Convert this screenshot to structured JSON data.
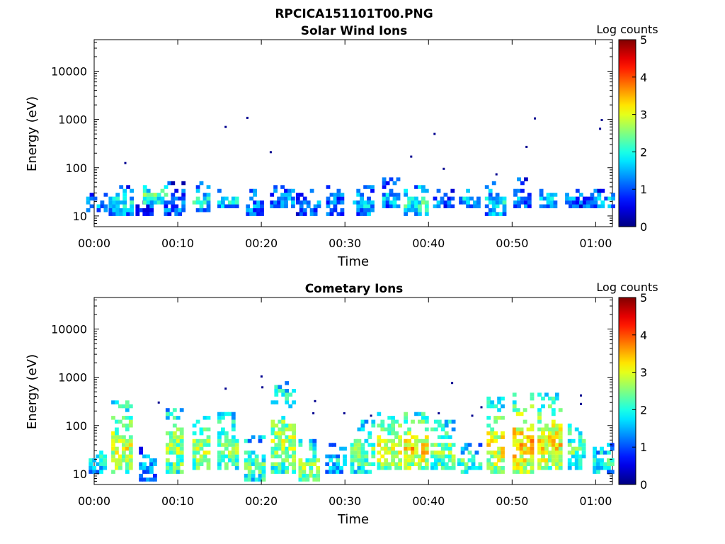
{
  "figure_title": "RPCICA151101T00.PNG",
  "chart_data": [
    {
      "type": "heatmap",
      "title": "Solar Wind Ions",
      "xlabel": "Time",
      "ylabel": "Energy (eV)",
      "y_scale": "log",
      "ylim": [
        6,
        45000
      ],
      "x_range_minutes": [
        0,
        62
      ],
      "x_ticks": [
        "00:00",
        "00:10",
        "00:20",
        "00:30",
        "00:40",
        "00:50",
        "01:00"
      ],
      "y_ticks": [
        "10",
        "100",
        "1000",
        "10000"
      ],
      "colorbar": {
        "label": "Log counts",
        "range": [
          0,
          5
        ],
        "ticks": [
          "0",
          "1",
          "2",
          "3",
          "4",
          "5"
        ],
        "colormap": "jet"
      },
      "bursts": [
        {
          "t": 0.3,
          "e": [
            13,
            30
          ],
          "c": 1.4
        },
        {
          "t": 3.2,
          "e": [
            12,
            40
          ],
          "c": 1.8
        },
        {
          "t": 6.0,
          "e": [
            12,
            20
          ],
          "c": 1.0
        },
        {
          "t": 7.3,
          "e": [
            20,
            42
          ],
          "c": 2.3
        },
        {
          "t": 9.6,
          "e": [
            12,
            45
          ],
          "c": 1.3
        },
        {
          "t": 12.8,
          "e": [
            14,
            45
          ],
          "c": 1.9
        },
        {
          "t": 16.0,
          "e": [
            15,
            35
          ],
          "c": 1.8
        },
        {
          "t": 19.2,
          "e": [
            12,
            35
          ],
          "c": 1.4
        },
        {
          "t": 22.5,
          "e": [
            16,
            40
          ],
          "c": 1.4
        },
        {
          "t": 25.6,
          "e": [
            12,
            32
          ],
          "c": 1.2
        },
        {
          "t": 28.8,
          "e": [
            12,
            42
          ],
          "c": 1.2
        },
        {
          "t": 32.2,
          "e": [
            12,
            40
          ],
          "c": 1.7
        },
        {
          "t": 35.5,
          "e": [
            16,
            58
          ],
          "c": 1.6
        },
        {
          "t": 38.5,
          "e": [
            12,
            42
          ],
          "c": 2.1
        },
        {
          "t": 41.8,
          "e": [
            15,
            35
          ],
          "c": 1.2
        },
        {
          "t": 44.9,
          "e": [
            17,
            35
          ],
          "c": 1.7
        },
        {
          "t": 48.0,
          "e": [
            12,
            45
          ],
          "c": 1.8
        },
        {
          "t": 51.2,
          "e": [
            15,
            60
          ],
          "c": 1.4
        },
        {
          "t": 54.3,
          "e": [
            15,
            35
          ],
          "c": 1.7
        },
        {
          "t": 57.8,
          "e": [
            17,
            35
          ],
          "c": 1.3
        },
        {
          "t": 60.8,
          "e": [
            17,
            35
          ],
          "c": 1.5
        }
      ],
      "scatter": [
        {
          "t": 3.6,
          "e": 125
        },
        {
          "t": 15.6,
          "e": 700
        },
        {
          "t": 18.2,
          "e": 1080
        },
        {
          "t": 21.0,
          "e": 210
        },
        {
          "t": 37.8,
          "e": 170
        },
        {
          "t": 40.6,
          "e": 500
        },
        {
          "t": 41.7,
          "e": 95
        },
        {
          "t": 48.0,
          "e": 73
        },
        {
          "t": 51.6,
          "e": 270
        },
        {
          "t": 52.6,
          "e": 1050
        },
        {
          "t": 60.6,
          "e": 970
        },
        {
          "t": 60.4,
          "e": 640
        }
      ]
    },
    {
      "type": "heatmap",
      "title": "Cometary Ions",
      "xlabel": "Time",
      "ylabel": "Energy (eV)",
      "y_scale": "log",
      "ylim": [
        6,
        45000
      ],
      "x_range_minutes": [
        0,
        62
      ],
      "x_ticks": [
        "00:00",
        "00:10",
        "00:20",
        "00:30",
        "00:40",
        "00:50",
        "01:00"
      ],
      "y_ticks": [
        "10",
        "100",
        "1000",
        "10000"
      ],
      "colorbar": {
        "label": "Log counts",
        "range": [
          0,
          5
        ],
        "ticks": [
          "0",
          "1",
          "2",
          "3",
          "4",
          "5"
        ],
        "colormap": "jet"
      },
      "bursts": [
        {
          "t": 0.4,
          "e": [
            12,
            36
          ],
          "c": 2.0
        },
        {
          "t": 3.3,
          "e": [
            12,
            280
          ],
          "c": 3.0
        },
        {
          "t": 6.4,
          "e": [
            7,
            35
          ],
          "c": 1.5
        },
        {
          "t": 9.6,
          "e": [
            12,
            220
          ],
          "c": 2.7
        },
        {
          "t": 12.8,
          "e": [
            14,
            140
          ],
          "c": 2.8
        },
        {
          "t": 16.0,
          "e": [
            14,
            170
          ],
          "c": 2.6
        },
        {
          "t": 19.2,
          "e": [
            7,
            60
          ],
          "c": 2.3
        },
        {
          "t": 22.6,
          "e": [
            12,
            700
          ],
          "c": 2.7
        },
        {
          "t": 25.7,
          "e": [
            8,
            45
          ],
          "c": 2.6
        },
        {
          "t": 28.9,
          "e": [
            12,
            40
          ],
          "c": 1.8
        },
        {
          "t": 32.1,
          "e": [
            12,
            120
          ],
          "c": 2.5
        },
        {
          "t": 35.3,
          "e": [
            14,
            160
          ],
          "c": 3.0
        },
        {
          "t": 38.5,
          "e": [
            14,
            160
          ],
          "c": 3.3
        },
        {
          "t": 41.7,
          "e": [
            14,
            120
          ],
          "c": 2.6
        },
        {
          "t": 44.9,
          "e": [
            12,
            38
          ],
          "c": 2.3
        },
        {
          "t": 48.0,
          "e": [
            12,
            350
          ],
          "c": 3.1
        },
        {
          "t": 51.3,
          "e": [
            12,
            420
          ],
          "c": 3.4
        },
        {
          "t": 54.5,
          "e": [
            13,
            440
          ],
          "c": 3.2
        },
        {
          "t": 57.7,
          "e": [
            14,
            150
          ],
          "c": 2.4
        },
        {
          "t": 60.9,
          "e": [
            12,
            38
          ],
          "c": 2.1
        }
      ],
      "scatter": [
        {
          "t": 7.6,
          "e": 300
        },
        {
          "t": 15.6,
          "e": 580
        },
        {
          "t": 19.9,
          "e": 1040
        },
        {
          "t": 20.0,
          "e": 620
        },
        {
          "t": 26.3,
          "e": 320
        },
        {
          "t": 26.1,
          "e": 180
        },
        {
          "t": 29.8,
          "e": 180
        },
        {
          "t": 33.0,
          "e": 160
        },
        {
          "t": 41.1,
          "e": 180
        },
        {
          "t": 42.7,
          "e": 760
        },
        {
          "t": 45.1,
          "e": 160
        },
        {
          "t": 46.2,
          "e": 240
        },
        {
          "t": 58.1,
          "e": 420
        },
        {
          "t": 58.1,
          "e": 280
        }
      ]
    }
  ]
}
